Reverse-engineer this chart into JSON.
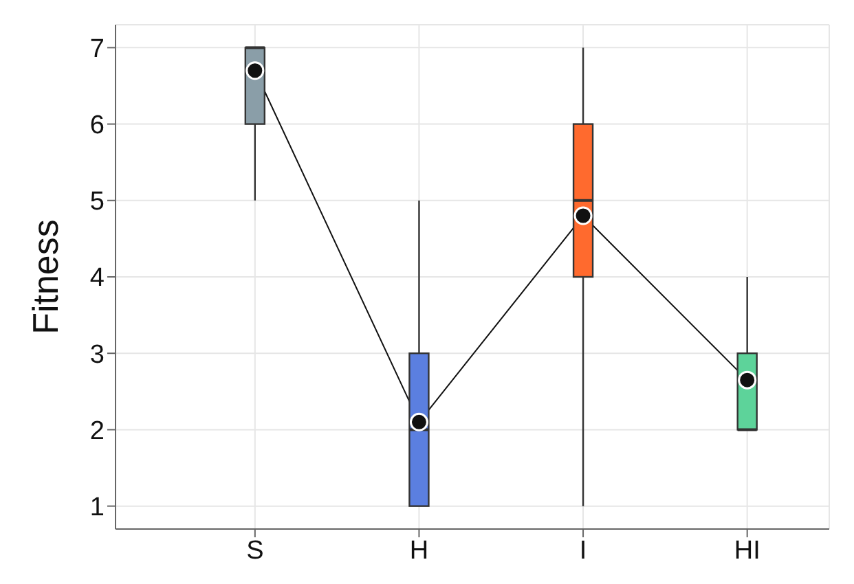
{
  "chart_data": {
    "type": "box",
    "ylabel": "Fitness",
    "categories": [
      "S",
      "H",
      "I",
      "HI"
    ],
    "colors": [
      "#8a9ea8",
      "#5b7fe0",
      "#ff6a2e",
      "#5dd39a"
    ],
    "boxes": [
      {
        "low": 5,
        "q1": 6,
        "median": 7,
        "q3": 7,
        "high": 7
      },
      {
        "low": 1,
        "q1": 1,
        "median": 2,
        "q3": 3,
        "high": 5
      },
      {
        "low": 1,
        "q1": 4,
        "median": 5,
        "q3": 6,
        "high": 7
      },
      {
        "low": 2,
        "q1": 2,
        "median": 2,
        "q3": 3,
        "high": 4
      }
    ],
    "series": [
      {
        "type": "line",
        "color": "#111111",
        "values": [
          6.7,
          2.1,
          4.8,
          2.65
        ],
        "marker": "circle"
      }
    ],
    "ylim": [
      0.7,
      7.3
    ],
    "yticks": [
      1,
      2,
      3,
      4,
      5,
      6,
      7
    ],
    "grid": true
  }
}
